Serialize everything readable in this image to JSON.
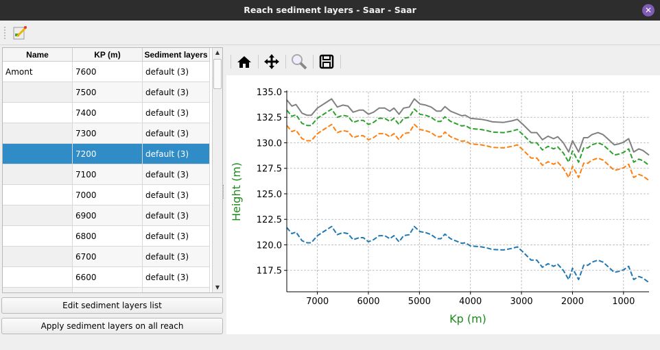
{
  "window": {
    "title": "Reach sediment layers - Saar - Saar",
    "close_icon": "close-icon"
  },
  "toolbar": {
    "edit_icon": "edit-document-icon"
  },
  "table": {
    "headers": [
      "Name",
      "KP (m)",
      "Sediment layers"
    ],
    "rows": [
      {
        "name": "Amont",
        "kp": "7600",
        "layers": "default (3)"
      },
      {
        "name": "",
        "kp": "7500",
        "layers": "default (3)"
      },
      {
        "name": "",
        "kp": "7400",
        "layers": "default (3)"
      },
      {
        "name": "",
        "kp": "7300",
        "layers": "default (3)"
      },
      {
        "name": "",
        "kp": "7200",
        "layers": "default (3)",
        "selected": true
      },
      {
        "name": "",
        "kp": "7100",
        "layers": "default (3)"
      },
      {
        "name": "",
        "kp": "7000",
        "layers": "default (3)"
      },
      {
        "name": "",
        "kp": "6900",
        "layers": "default (3)"
      },
      {
        "name": "",
        "kp": "6800",
        "layers": "default (3)"
      },
      {
        "name": "",
        "kp": "6700",
        "layers": "default (3)"
      },
      {
        "name": "",
        "kp": "6600",
        "layers": "default (3)"
      },
      {
        "name": "",
        "kp": "",
        "layers": ""
      }
    ],
    "selection_color": "#308cc6"
  },
  "buttons": {
    "edit": "Edit sediment layers list",
    "apply": "Apply sediment layers on all reach"
  },
  "plot_toolbar": {
    "icons": [
      "home-icon",
      "pan-icon",
      "zoom-icon",
      "save-icon"
    ]
  },
  "chart_data": {
    "type": "line",
    "xlabel": "Kp (m)",
    "ylabel": "Height (m)",
    "label_color": "#1a8a1a",
    "xlim": [
      7600,
      500
    ],
    "ylim": [
      115.4,
      135.0
    ],
    "xticks": [
      "7000",
      "6000",
      "5000",
      "4000",
      "3000",
      "2000",
      "1000"
    ],
    "xtick_values": [
      7000,
      6000,
      5000,
      4000,
      3000,
      2000,
      1000
    ],
    "yticks": [
      "117.5",
      "120.0",
      "122.5",
      "125.0",
      "127.5",
      "130.0",
      "132.5",
      "135.0"
    ],
    "ytick_values": [
      117.5,
      120,
      122.5,
      125,
      127.5,
      130,
      132.5,
      135
    ],
    "grid": true,
    "x": [
      7600,
      7500,
      7420,
      7300,
      7200,
      7120,
      7000,
      6830,
      6720,
      6610,
      6500,
      6400,
      6300,
      6180,
      6100,
      6000,
      5900,
      5790,
      5680,
      5580,
      5500,
      5400,
      5310,
      5200,
      5100,
      4990,
      4880,
      4770,
      4660,
      4580,
      4500,
      4390,
      4170,
      4100,
      4000,
      3790,
      3680,
      3570,
      3350,
      3190,
      3080,
      2970,
      2810,
      2700,
      2590,
      2480,
      2370,
      2290,
      2180,
      2075,
      2000,
      1880,
      1780,
      1700,
      1620,
      1500,
      1400,
      1290,
      1180,
      1090,
      1000,
      900,
      800,
      700,
      620,
      500
    ],
    "series": [
      {
        "color": "#808080",
        "style": "solid",
        "values": [
          134.2,
          133.6,
          133.75,
          132.9,
          132.7,
          132.7,
          133.4,
          133.95,
          134.3,
          133.5,
          133.7,
          133.6,
          133.0,
          133.2,
          133.2,
          132.8,
          133.0,
          133.4,
          133.4,
          133.1,
          133.4,
          132.8,
          133.4,
          133.5,
          134.3,
          133.8,
          133.7,
          133.5,
          133.1,
          133.1,
          133.55,
          133.1,
          132.65,
          132.7,
          132.4,
          132.3,
          132.2,
          132.05,
          132.0,
          132.15,
          132.3,
          131.8,
          131.0,
          131.0,
          130.3,
          130.65,
          130.4,
          130.6,
          130.0,
          129.1,
          130.2,
          129.1,
          130.5,
          130.5,
          130.8,
          131.0,
          130.8,
          130.3,
          129.8,
          129.9,
          130.05,
          130.4,
          129.1,
          129.4,
          129.25,
          128.8
        ]
      },
      {
        "color": "#2ca02c",
        "style": "dashed",
        "values": [
          133.2,
          132.6,
          132.75,
          131.9,
          131.7,
          131.7,
          132.4,
          132.95,
          133.3,
          132.5,
          132.7,
          132.6,
          132.0,
          132.2,
          132.2,
          131.8,
          132.0,
          132.4,
          132.4,
          132.1,
          132.4,
          131.8,
          132.4,
          132.5,
          133.3,
          132.8,
          132.7,
          132.5,
          132.1,
          132.1,
          132.55,
          132.1,
          131.65,
          131.7,
          131.4,
          131.3,
          131.2,
          131.05,
          131.0,
          131.15,
          131.3,
          130.8,
          130.0,
          130.0,
          129.3,
          129.65,
          129.4,
          129.6,
          129.0,
          128.1,
          129.2,
          128.1,
          129.5,
          129.5,
          129.8,
          130.0,
          129.8,
          129.3,
          128.8,
          128.9,
          129.05,
          129.4,
          128.1,
          128.4,
          128.25,
          127.8
        ]
      },
      {
        "color": "#ff7f0e",
        "style": "dashed",
        "values": [
          131.7,
          131.1,
          131.25,
          130.4,
          130.2,
          130.2,
          130.9,
          131.45,
          131.8,
          131.0,
          131.2,
          131.1,
          130.5,
          130.7,
          130.7,
          130.3,
          130.5,
          130.9,
          130.9,
          130.6,
          130.9,
          130.3,
          130.9,
          131.0,
          131.8,
          131.3,
          131.2,
          131.0,
          130.6,
          130.6,
          131.05,
          130.6,
          130.15,
          130.2,
          129.9,
          129.8,
          129.7,
          129.55,
          129.5,
          129.65,
          129.8,
          129.3,
          128.5,
          128.5,
          127.8,
          128.15,
          127.9,
          128.1,
          127.5,
          126.6,
          127.7,
          126.6,
          128.0,
          128.0,
          128.3,
          128.5,
          128.3,
          127.8,
          127.3,
          127.4,
          127.55,
          127.9,
          126.6,
          126.9,
          126.75,
          126.3
        ]
      },
      {
        "color": "#1f77b4",
        "style": "dashed",
        "values": [
          121.7,
          121.1,
          121.25,
          120.4,
          120.2,
          120.2,
          120.9,
          121.45,
          121.8,
          121.0,
          121.2,
          121.1,
          120.5,
          120.7,
          120.7,
          120.3,
          120.5,
          120.9,
          120.9,
          120.6,
          120.9,
          120.3,
          120.9,
          121.0,
          121.8,
          121.3,
          121.2,
          121.0,
          120.6,
          120.6,
          121.05,
          120.6,
          120.15,
          120.2,
          119.9,
          119.8,
          119.7,
          119.55,
          119.5,
          119.65,
          119.8,
          119.3,
          118.5,
          118.5,
          117.8,
          118.15,
          117.9,
          118.1,
          117.5,
          116.6,
          117.7,
          116.6,
          118.0,
          118.0,
          118.3,
          118.5,
          118.3,
          117.8,
          117.3,
          117.4,
          117.55,
          117.9,
          116.6,
          116.9,
          116.75,
          116.3
        ]
      }
    ]
  }
}
